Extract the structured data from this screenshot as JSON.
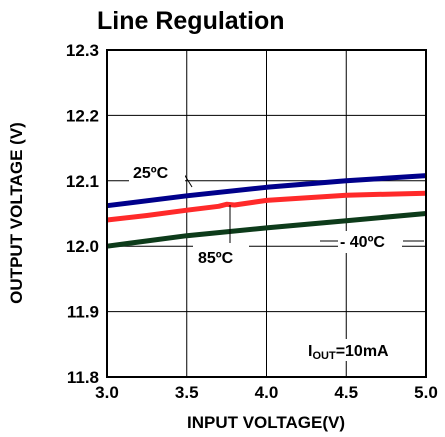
{
  "chart_data": {
    "type": "line",
    "title": "Line Regulation",
    "xlabel": "INPUT VOLTAGE(V)",
    "ylabel": "OUTPUT VOLTAGE (V)",
    "xlim": [
      3.0,
      5.0
    ],
    "ylim": [
      11.8,
      12.3
    ],
    "x_ticks": [
      "3.0",
      "3.5",
      "4.0",
      "4.5",
      "5.0"
    ],
    "y_ticks": [
      "11.8",
      "11.9",
      "12.0",
      "12.1",
      "12.2",
      "12.3"
    ],
    "grid": true,
    "series": [
      {
        "name": "25ºC",
        "color": "#00008b",
        "x": [
          3.0,
          3.5,
          4.0,
          4.5,
          5.0
        ],
        "y": [
          12.062,
          12.077,
          12.09,
          12.1,
          12.108
        ]
      },
      {
        "name": "85ºC",
        "color": "#ff2a2a",
        "x": [
          3.0,
          3.25,
          3.5,
          3.7,
          3.75,
          3.8,
          4.0,
          4.5,
          5.0
        ],
        "y": [
          12.04,
          12.047,
          12.055,
          12.061,
          12.064,
          12.063,
          12.07,
          12.078,
          12.081
        ]
      },
      {
        "name": "- 40ºC",
        "color": "#0d3b1a",
        "x": [
          3.0,
          3.5,
          4.0,
          4.5,
          5.0
        ],
        "y": [
          12.0,
          12.016,
          12.028,
          12.039,
          12.05
        ]
      }
    ],
    "annotation": {
      "text_main": "I",
      "text_sub": "OUT",
      "text_rest": "=10mA"
    }
  }
}
